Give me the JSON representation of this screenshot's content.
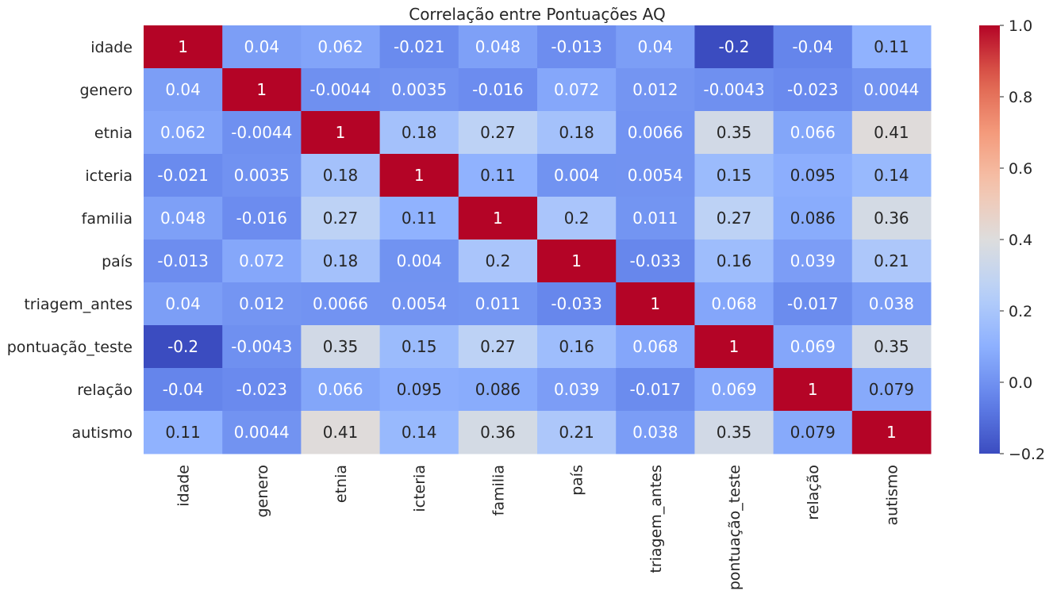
{
  "chart_data": {
    "type": "heatmap",
    "title": "Correlação entre Pontuações AQ",
    "colormap": "coolwarm",
    "vmin": -0.2,
    "vmax": 1.0,
    "rows": [
      "idade",
      "genero",
      "etnia",
      "icteria",
      "familia",
      "país",
      "triagem_antes",
      "pontuação_teste",
      "relação",
      "autismo"
    ],
    "cols": [
      "idade",
      "genero",
      "etnia",
      "icteria",
      "familia",
      "país",
      "triagem_antes",
      "pontuação_teste",
      "relação",
      "autismo"
    ],
    "values": [
      [
        1,
        0.04,
        0.062,
        -0.021,
        0.048,
        -0.013,
        0.04,
        -0.2,
        -0.04,
        0.11
      ],
      [
        0.04,
        1,
        -0.0044,
        0.0035,
        -0.016,
        0.072,
        0.012,
        -0.0043,
        -0.023,
        0.0044
      ],
      [
        0.062,
        -0.0044,
        1,
        0.18,
        0.27,
        0.18,
        0.0066,
        0.35,
        0.066,
        0.41
      ],
      [
        -0.021,
        0.0035,
        0.18,
        1,
        0.11,
        0.004,
        0.0054,
        0.15,
        0.095,
        0.14
      ],
      [
        0.048,
        -0.016,
        0.27,
        0.11,
        1,
        0.2,
        0.011,
        0.27,
        0.086,
        0.36
      ],
      [
        -0.013,
        0.072,
        0.18,
        0.004,
        0.2,
        1,
        -0.033,
        0.16,
        0.039,
        0.21
      ],
      [
        0.04,
        0.012,
        0.0066,
        0.0054,
        0.011,
        -0.033,
        1,
        0.068,
        -0.017,
        0.038
      ],
      [
        -0.2,
        -0.0043,
        0.35,
        0.15,
        0.27,
        0.16,
        0.068,
        1,
        0.069,
        0.35
      ],
      [
        -0.04,
        -0.023,
        0.066,
        0.095,
        0.086,
        0.039,
        -0.017,
        0.069,
        1,
        0.079
      ],
      [
        0.11,
        0.0044,
        0.41,
        0.14,
        0.36,
        0.21,
        0.038,
        0.35,
        0.079,
        1
      ]
    ],
    "colorbar_ticks": [
      "−0.2",
      "0.0",
      "0.2",
      "0.4",
      "0.6",
      "0.8",
      "1.0"
    ],
    "colorbar_tick_values": [
      -0.2,
      0.0,
      0.2,
      0.4,
      0.6,
      0.8,
      1.0
    ],
    "annotations": true
  }
}
